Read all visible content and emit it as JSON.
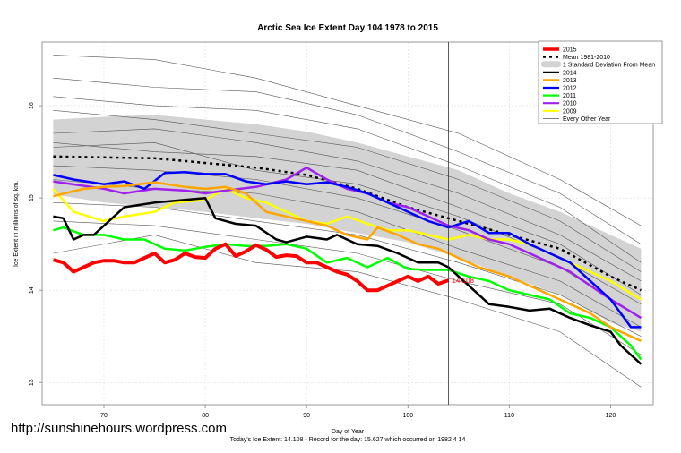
{
  "chart_data": {
    "type": "line",
    "title": "Arctic Sea Ice Extent Day 104 1978 to 2015",
    "xlabel": "Day of Year",
    "ylabel": "Ice Extent in millions of sq. km.",
    "footer": "Today's Ice Extent: 14.108  - Record for the day: 15.627 which occurred on 1982 4 14",
    "watermark": "http://sunshinehours.wordpress.com",
    "xlim": [
      63.9,
      124.2
    ],
    "ylim": [
      12.76,
      16.69
    ],
    "xticks": [
      70,
      80,
      90,
      100,
      110,
      120
    ],
    "yticks": [
      13,
      14,
      15,
      16
    ],
    "grid": true,
    "vline_day": 104,
    "current_label": "14.108",
    "legend_position": "top-right",
    "legend": [
      {
        "label": "2015",
        "color": "#ff0000",
        "style": "thick"
      },
      {
        "label": "Mean 1981-2010",
        "color": "#000000",
        "style": "dotted"
      },
      {
        "label": "1 Standard Deviation From Mean",
        "color": "#d3d3d3",
        "style": "band"
      },
      {
        "label": "2014",
        "color": "#000000",
        "style": "solid"
      },
      {
        "label": "2013",
        "color": "#ffa500",
        "style": "solid"
      },
      {
        "label": "2012",
        "color": "#0000ff",
        "style": "solid"
      },
      {
        "label": "2011",
        "color": "#00ff00",
        "style": "solid"
      },
      {
        "label": "2010",
        "color": "#a020f0",
        "style": "solid"
      },
      {
        "label": "2009",
        "color": "#ffff00",
        "style": "solid"
      },
      {
        "label": "Every Other Year",
        "color": "#555555",
        "style": "thin"
      }
    ],
    "sd_band": {
      "x": [
        65,
        70,
        75,
        80,
        85,
        90,
        95,
        100,
        105,
        110,
        115,
        120,
        123
      ],
      "upper": [
        15.85,
        15.88,
        15.9,
        15.85,
        15.8,
        15.72,
        15.6,
        15.45,
        15.3,
        15.05,
        14.85,
        14.6,
        14.45
      ],
      "lower": [
        15.04,
        14.95,
        14.9,
        14.85,
        14.78,
        14.72,
        14.62,
        14.52,
        14.35,
        14.15,
        13.95,
        13.65,
        13.55
      ]
    },
    "mean": {
      "x": [
        65,
        70,
        75,
        80,
        85,
        90,
        95,
        100,
        105,
        110,
        115,
        120,
        123
      ],
      "y": [
        15.45,
        15.44,
        15.43,
        15.38,
        15.33,
        15.25,
        15.1,
        14.9,
        14.75,
        14.6,
        14.45,
        14.15,
        14.0
      ]
    },
    "other_years": [
      {
        "x": [
          65,
          75,
          85,
          95,
          105,
          115,
          123
        ],
        "y": [
          16.55,
          16.5,
          16.3,
          16.0,
          15.7,
          15.2,
          14.7
        ]
      },
      {
        "x": [
          65,
          75,
          85,
          95,
          105,
          115,
          123
        ],
        "y": [
          16.3,
          16.2,
          16.15,
          15.9,
          15.5,
          15.05,
          14.5
        ]
      },
      {
        "x": [
          65,
          75,
          85,
          95,
          105,
          115,
          123
        ],
        "y": [
          16.1,
          16.0,
          15.95,
          15.75,
          15.35,
          14.9,
          14.3
        ]
      },
      {
        "x": [
          65,
          75,
          85,
          95,
          105,
          115,
          123
        ],
        "y": [
          15.95,
          15.85,
          15.7,
          15.55,
          15.2,
          14.75,
          14.2
        ]
      },
      {
        "x": [
          65,
          75,
          85,
          95,
          105,
          115,
          123
        ],
        "y": [
          15.7,
          15.75,
          15.6,
          15.4,
          15.05,
          14.6,
          14.1
        ]
      },
      {
        "x": [
          65,
          75,
          85,
          95,
          105,
          115,
          123
        ],
        "y": [
          15.6,
          15.5,
          15.45,
          15.3,
          14.9,
          14.5,
          13.95
        ]
      },
      {
        "x": [
          65,
          75,
          85,
          95,
          105,
          115,
          123
        ],
        "y": [
          15.55,
          15.6,
          15.3,
          15.15,
          14.8,
          14.35,
          13.85
        ]
      },
      {
        "x": [
          65,
          75,
          85,
          95,
          105,
          115,
          123
        ],
        "y": [
          15.35,
          15.3,
          15.2,
          15.0,
          14.65,
          14.25,
          13.7
        ]
      },
      {
        "x": [
          65,
          75,
          85,
          95,
          105,
          115,
          123
        ],
        "y": [
          15.2,
          15.1,
          15.05,
          14.85,
          14.45,
          14.1,
          13.6
        ]
      },
      {
        "x": [
          65,
          75,
          85,
          95,
          105,
          115,
          123
        ],
        "y": [
          14.95,
          14.9,
          14.75,
          14.6,
          14.3,
          13.95,
          13.5
        ]
      },
      {
        "x": [
          65,
          75,
          85,
          95,
          105,
          115,
          123
        ],
        "y": [
          14.75,
          14.7,
          14.55,
          14.4,
          14.1,
          13.85,
          13.3
        ]
      },
      {
        "x": [
          65,
          75,
          85,
          95,
          105,
          115,
          123
        ],
        "y": [
          14.4,
          14.6,
          14.3,
          14.2,
          13.9,
          13.55,
          12.95
        ]
      }
    ],
    "series": [
      {
        "name": "2009",
        "color": "#ffff00",
        "x": [
          65,
          67,
          70,
          72,
          75,
          77,
          80,
          82,
          84,
          86,
          88,
          90,
          92,
          94,
          96,
          98,
          100,
          102,
          104,
          106,
          108,
          110,
          112,
          114,
          116,
          118,
          120,
          123
        ],
        "y": [
          15.1,
          14.85,
          14.75,
          14.8,
          14.85,
          14.95,
          14.98,
          15.1,
          15.0,
          14.95,
          14.85,
          14.75,
          14.72,
          14.8,
          14.72,
          14.65,
          14.65,
          14.6,
          14.55,
          14.6,
          14.55,
          14.55,
          14.5,
          14.4,
          14.3,
          14.2,
          14.1,
          13.9
        ]
      },
      {
        "name": "2010",
        "color": "#a020f0",
        "x": [
          65,
          70,
          72,
          75,
          78,
          80,
          82,
          85,
          88,
          90,
          92,
          94,
          96,
          98,
          100,
          102,
          104,
          106,
          108,
          110,
          112,
          114,
          116,
          118,
          120,
          123
        ],
        "y": [
          15.18,
          15.1,
          15.05,
          15.1,
          15.08,
          15.05,
          15.08,
          15.12,
          15.2,
          15.33,
          15.2,
          15.1,
          15.05,
          14.95,
          14.9,
          14.8,
          14.7,
          14.65,
          14.55,
          14.5,
          14.4,
          14.3,
          14.2,
          14.05,
          13.9,
          13.7
        ]
      },
      {
        "name": "2011",
        "color": "#00ff00",
        "x": [
          65,
          66,
          68,
          70,
          72,
          74,
          76,
          78,
          80,
          82,
          84,
          86,
          88,
          90,
          92,
          94,
          96,
          98,
          100,
          102,
          104,
          106,
          108,
          110,
          112,
          114,
          116,
          118,
          120,
          122,
          123
        ],
        "y": [
          14.65,
          14.68,
          14.6,
          14.6,
          14.55,
          14.55,
          14.45,
          14.43,
          14.47,
          14.5,
          14.48,
          14.48,
          14.5,
          14.45,
          14.3,
          14.35,
          14.25,
          14.35,
          14.23,
          14.22,
          14.22,
          14.15,
          14.1,
          14.0,
          13.95,
          13.9,
          13.75,
          13.7,
          13.6,
          13.4,
          13.25
        ]
      },
      {
        "name": "2012",
        "color": "#0000ff",
        "x": [
          65,
          67,
          70,
          72,
          74,
          76,
          78,
          80,
          82,
          84,
          86,
          88,
          90,
          92,
          94,
          96,
          98,
          100,
          102,
          104,
          106,
          108,
          110,
          112,
          114,
          116,
          118,
          120,
          122,
          123
        ],
        "y": [
          15.25,
          15.2,
          15.15,
          15.18,
          15.1,
          15.27,
          15.28,
          15.26,
          15.26,
          15.18,
          15.15,
          15.18,
          15.15,
          15.17,
          15.12,
          15.05,
          14.95,
          14.85,
          14.75,
          14.68,
          14.75,
          14.62,
          14.62,
          14.5,
          14.4,
          14.3,
          14.1,
          13.9,
          13.6,
          13.6
        ]
      },
      {
        "name": "2013",
        "color": "#ffa500",
        "x": [
          65,
          68,
          70,
          72,
          75,
          78,
          80,
          82,
          84,
          86,
          88,
          90,
          92,
          94,
          96,
          97,
          99,
          101,
          103,
          105,
          107,
          110,
          112,
          114,
          116,
          118,
          120,
          123
        ],
        "y": [
          15.02,
          15.1,
          15.12,
          15.13,
          15.17,
          15.12,
          15.1,
          15.12,
          15.05,
          14.85,
          14.8,
          14.75,
          14.7,
          14.6,
          14.55,
          14.68,
          14.6,
          14.5,
          14.45,
          14.35,
          14.25,
          14.15,
          14.05,
          13.95,
          13.85,
          13.75,
          13.6,
          13.45
        ]
      },
      {
        "name": "2014",
        "color": "#000000",
        "x": [
          65,
          66,
          67,
          68,
          69,
          71,
          72,
          75,
          77,
          78,
          80,
          81,
          83,
          85,
          87,
          88,
          90,
          92,
          93,
          95,
          97,
          99,
          101,
          103,
          104,
          106,
          108,
          110,
          112,
          114,
          116,
          118,
          120,
          121,
          123
        ],
        "y": [
          14.8,
          14.78,
          14.55,
          14.6,
          14.6,
          14.8,
          14.9,
          14.95,
          14.97,
          14.98,
          15.0,
          14.78,
          14.72,
          14.7,
          14.55,
          14.52,
          14.58,
          14.55,
          14.6,
          14.5,
          14.48,
          14.4,
          14.3,
          14.3,
          14.25,
          14.05,
          13.85,
          13.82,
          13.78,
          13.8,
          13.7,
          13.62,
          13.55,
          13.4,
          13.2
        ]
      },
      {
        "name": "2015",
        "color": "#ff0000",
        "x": [
          65,
          66,
          67,
          68,
          69,
          70,
          71,
          72,
          73,
          74,
          75,
          76,
          77,
          78,
          79,
          80,
          81,
          82,
          83,
          84,
          85,
          86,
          87,
          88,
          89,
          90,
          91,
          92,
          93,
          94,
          95,
          96,
          97,
          98,
          99,
          100,
          101,
          102,
          103,
          104
        ],
        "y": [
          14.33,
          14.3,
          14.2,
          14.25,
          14.3,
          14.32,
          14.32,
          14.3,
          14.3,
          14.35,
          14.4,
          14.3,
          14.33,
          14.4,
          14.36,
          14.35,
          14.45,
          14.5,
          14.37,
          14.42,
          14.49,
          14.44,
          14.36,
          14.38,
          14.37,
          14.3,
          14.3,
          14.25,
          14.2,
          14.17,
          14.1,
          14.0,
          14.0,
          14.05,
          14.1,
          14.15,
          14.1,
          14.15,
          14.07,
          14.108
        ]
      }
    ]
  }
}
